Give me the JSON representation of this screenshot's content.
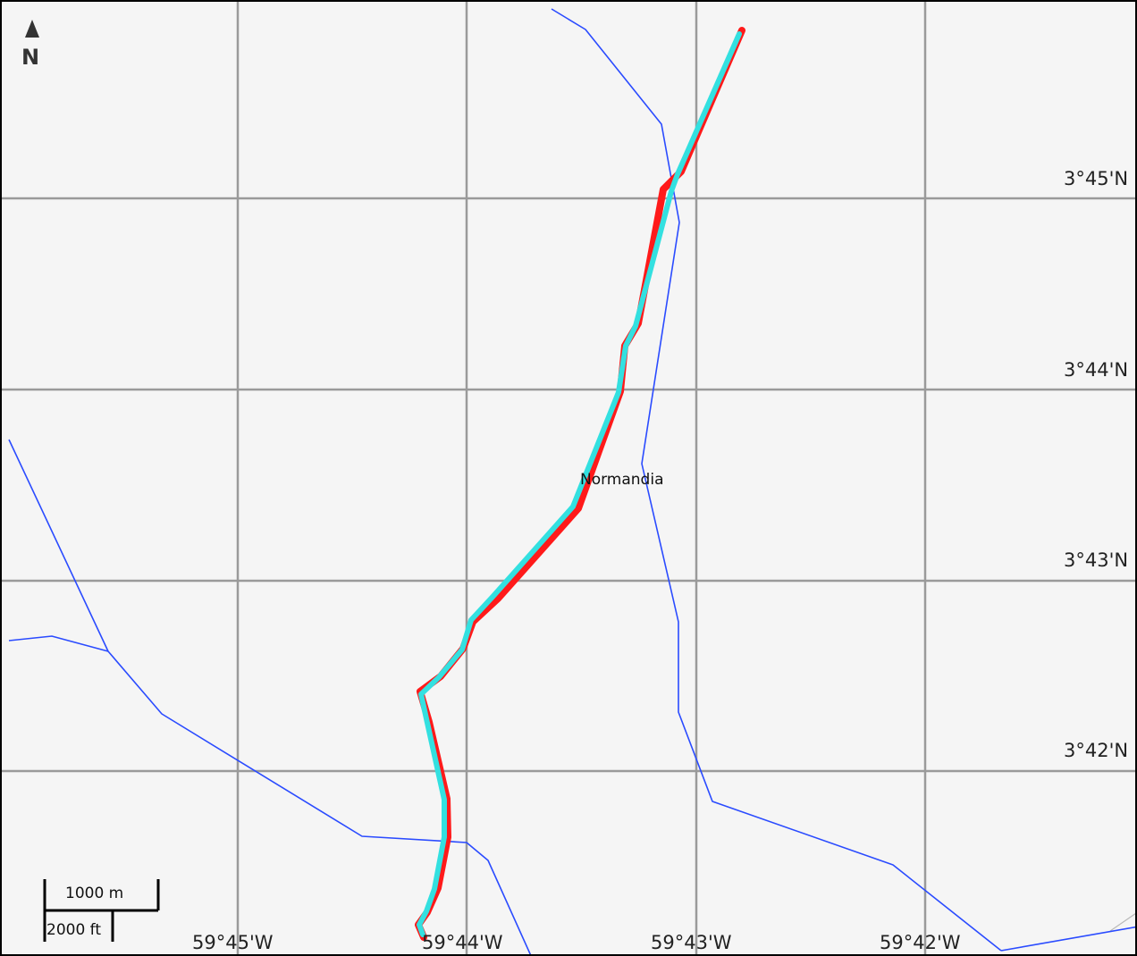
{
  "map": {
    "north_indicator": {
      "icon": "north-arrow-icon",
      "label": "N"
    },
    "latitude_labels": [
      "3°45'N",
      "3°44'N",
      "3°43'N",
      "3°42'N"
    ],
    "longitude_labels": [
      "59°45'W",
      "59°44'W",
      "59°43'W",
      "59°42'W"
    ],
    "places": [
      {
        "name": "Normandia"
      }
    ],
    "scale_bar": {
      "metric_label": "1000 m",
      "imperial_label": "2000 ft"
    },
    "colors": {
      "background": "#f5f5f5",
      "grid": "#9a9a9a",
      "river": "#2a4bff",
      "route_fill": "#33e0e0",
      "route_outline": "#ff1a1a"
    }
  }
}
